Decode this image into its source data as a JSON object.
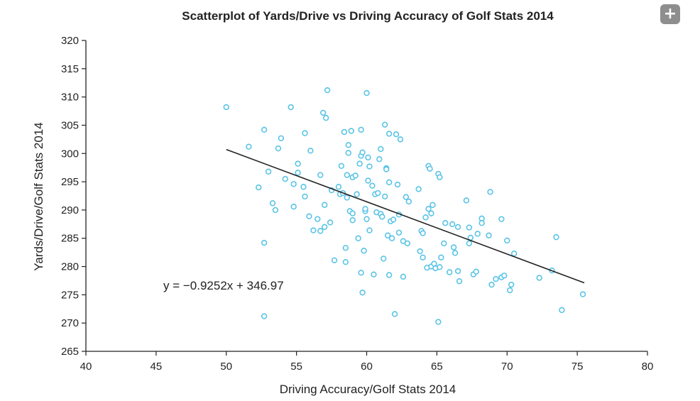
{
  "add_button": {
    "icon": "plus-icon",
    "glyph": "+"
  },
  "chart_data": {
    "type": "scatter",
    "title": "Scatterplot of Yards/Drive vs Driving Accuracy of Golf Stats 2014",
    "xlabel": "Driving Accuracy/Golf Stats 2014",
    "ylabel": "Yards/Drive/Golf Stats 2014",
    "xlim": [
      40,
      80
    ],
    "ylim": [
      265,
      320
    ],
    "xticks": [
      40,
      45,
      50,
      55,
      60,
      65,
      70,
      75,
      80
    ],
    "yticks": [
      265,
      270,
      275,
      280,
      285,
      290,
      295,
      300,
      305,
      310,
      315,
      320
    ],
    "grid": false,
    "point_color": "#5bc4e6",
    "trendline": {
      "slope": -0.9252,
      "intercept": 346.97,
      "x_range": [
        50,
        75.5
      ],
      "label": "y = −0.9252x + 346.97",
      "color": "#222222"
    },
    "points": [
      [
        50.0,
        308.2
      ],
      [
        51.6,
        301.2
      ],
      [
        52.3,
        294.0
      ],
      [
        52.7,
        304.2
      ],
      [
        53.0,
        296.8
      ],
      [
        53.3,
        291.2
      ],
      [
        53.5,
        290.0
      ],
      [
        53.7,
        300.9
      ],
      [
        53.9,
        302.7
      ],
      [
        52.7,
        284.2
      ],
      [
        52.7,
        271.2
      ],
      [
        54.2,
        295.5
      ],
      [
        54.6,
        308.2
      ],
      [
        54.8,
        294.6
      ],
      [
        54.8,
        290.6
      ],
      [
        55.1,
        296.6
      ],
      [
        55.1,
        298.2
      ],
      [
        55.5,
        294.1
      ],
      [
        55.6,
        303.6
      ],
      [
        55.6,
        292.4
      ],
      [
        55.9,
        288.9
      ],
      [
        56.0,
        300.5
      ],
      [
        56.2,
        286.4
      ],
      [
        56.5,
        288.4
      ],
      [
        56.7,
        286.3
      ],
      [
        56.7,
        296.2
      ],
      [
        56.9,
        307.2
      ],
      [
        57.0,
        290.9
      ],
      [
        57.0,
        287.0
      ],
      [
        57.1,
        306.3
      ],
      [
        57.2,
        311.2
      ],
      [
        57.4,
        287.8
      ],
      [
        57.5,
        293.5
      ],
      [
        57.7,
        281.1
      ],
      [
        58.0,
        294.1
      ],
      [
        58.1,
        292.8
      ],
      [
        58.2,
        297.8
      ],
      [
        58.3,
        293.0
      ],
      [
        58.4,
        303.8
      ],
      [
        58.5,
        283.3
      ],
      [
        58.5,
        280.8
      ],
      [
        58.6,
        292.2
      ],
      [
        58.6,
        296.2
      ],
      [
        58.7,
        300.1
      ],
      [
        58.7,
        301.5
      ],
      [
        58.8,
        289.8
      ],
      [
        58.9,
        304.0
      ],
      [
        59.0,
        295.8
      ],
      [
        59.0,
        288.2
      ],
      [
        59.0,
        289.4
      ],
      [
        59.2,
        296.1
      ],
      [
        59.3,
        292.8
      ],
      [
        59.4,
        285.0
      ],
      [
        59.5,
        298.2
      ],
      [
        59.6,
        304.2
      ],
      [
        59.6,
        299.6
      ],
      [
        59.6,
        278.9
      ],
      [
        59.7,
        300.2
      ],
      [
        59.7,
        275.4
      ],
      [
        59.8,
        282.8
      ],
      [
        59.9,
        289.8
      ],
      [
        59.9,
        290.2
      ],
      [
        60.0,
        310.7
      ],
      [
        60.0,
        288.4
      ],
      [
        60.1,
        295.2
      ],
      [
        60.1,
        299.3
      ],
      [
        60.2,
        297.7
      ],
      [
        60.2,
        286.4
      ],
      [
        60.4,
        294.3
      ],
      [
        60.5,
        278.6
      ],
      [
        60.6,
        292.8
      ],
      [
        60.7,
        289.6
      ],
      [
        60.8,
        293.0
      ],
      [
        60.9,
        299.0
      ],
      [
        61.0,
        289.3
      ],
      [
        61.0,
        300.8
      ],
      [
        61.1,
        288.8
      ],
      [
        61.2,
        281.4
      ],
      [
        61.3,
        292.4
      ],
      [
        61.3,
        305.1
      ],
      [
        61.4,
        297.4
      ],
      [
        61.4,
        297.2
      ],
      [
        61.5,
        285.5
      ],
      [
        61.6,
        294.9
      ],
      [
        61.6,
        278.5
      ],
      [
        61.6,
        303.5
      ],
      [
        61.7,
        288.0
      ],
      [
        61.8,
        285.0
      ],
      [
        61.9,
        288.3
      ],
      [
        62.0,
        271.6
      ],
      [
        62.1,
        303.4
      ],
      [
        62.2,
        294.5
      ],
      [
        62.3,
        289.2
      ],
      [
        62.3,
        286.0
      ],
      [
        62.4,
        302.5
      ],
      [
        62.6,
        284.5
      ],
      [
        62.6,
        278.2
      ],
      [
        62.8,
        292.3
      ],
      [
        62.9,
        284.1
      ],
      [
        63.0,
        291.5
      ],
      [
        63.7,
        293.7
      ],
      [
        63.8,
        282.7
      ],
      [
        63.9,
        286.3
      ],
      [
        64.0,
        285.9
      ],
      [
        64.0,
        281.6
      ],
      [
        64.2,
        288.7
      ],
      [
        64.3,
        279.8
      ],
      [
        64.4,
        290.2
      ],
      [
        64.4,
        297.8
      ],
      [
        64.5,
        297.3
      ],
      [
        64.6,
        289.4
      ],
      [
        64.6,
        280.0
      ],
      [
        64.7,
        290.9
      ],
      [
        64.8,
        280.5
      ],
      [
        64.9,
        279.7
      ],
      [
        65.1,
        296.4
      ],
      [
        65.2,
        295.8
      ],
      [
        65.2,
        279.9
      ],
      [
        65.3,
        281.6
      ],
      [
        65.1,
        270.2
      ],
      [
        65.5,
        284.1
      ],
      [
        65.6,
        287.7
      ],
      [
        65.9,
        279.0
      ],
      [
        66.1,
        287.5
      ],
      [
        66.2,
        283.4
      ],
      [
        66.3,
        282.4
      ],
      [
        66.5,
        287.0
      ],
      [
        66.5,
        279.2
      ],
      [
        66.6,
        277.4
      ],
      [
        67.1,
        291.7
      ],
      [
        67.3,
        286.9
      ],
      [
        67.3,
        284.1
      ],
      [
        67.4,
        285.1
      ],
      [
        67.6,
        278.6
      ],
      [
        67.8,
        279.1
      ],
      [
        67.9,
        285.8
      ],
      [
        68.2,
        288.5
      ],
      [
        68.2,
        287.7
      ],
      [
        68.7,
        285.5
      ],
      [
        68.8,
        293.2
      ],
      [
        68.9,
        276.8
      ],
      [
        69.2,
        277.8
      ],
      [
        69.6,
        278.1
      ],
      [
        69.6,
        288.4
      ],
      [
        69.8,
        278.4
      ],
      [
        70.0,
        284.6
      ],
      [
        70.2,
        275.8
      ],
      [
        70.3,
        276.8
      ],
      [
        70.5,
        282.3
      ],
      [
        72.3,
        278.0
      ],
      [
        73.2,
        279.3
      ],
      [
        73.5,
        285.2
      ],
      [
        73.9,
        272.3
      ],
      [
        75.4,
        275.1
      ]
    ]
  }
}
